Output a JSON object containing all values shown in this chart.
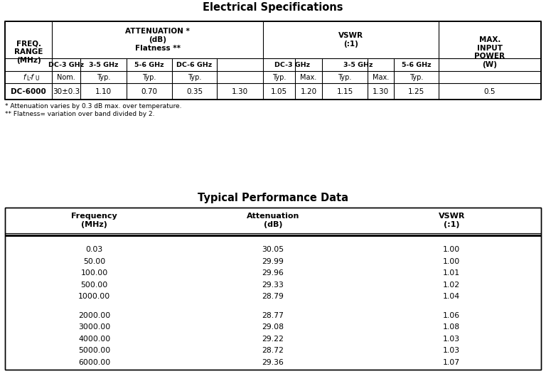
{
  "title1": "Electrical Specifications",
  "title2": "Typical Performance Data",
  "footnote1": "* Attenuation varies by 0.3 dB max. over temperature.",
  "footnote2": "** Flatness= variation over band divided by 2.",
  "elec_data_row": [
    "DC-6000",
    "30±0.3",
    "1.10",
    "0.70",
    "0.35",
    "1.30",
    "1.05",
    "1.20",
    "1.15",
    "1.30",
    "1.25",
    "0.5"
  ],
  "perf_headers": [
    "Frequency\n(MHz)",
    "Attenuation\n(dB)",
    "VSWR\n(:1)"
  ],
  "perf_data": [
    [
      "0.03",
      "30.05",
      "1.00"
    ],
    [
      "50.00",
      "29.99",
      "1.00"
    ],
    [
      "100.00",
      "29.96",
      "1.01"
    ],
    [
      "500.00",
      "29.33",
      "1.02"
    ],
    [
      "1000.00",
      "28.79",
      "1.04"
    ],
    [
      "2000.00",
      "28.77",
      "1.06"
    ],
    [
      "3000.00",
      "29.08",
      "1.08"
    ],
    [
      "4000.00",
      "29.22",
      "1.03"
    ],
    [
      "5000.00",
      "28.72",
      "1.03"
    ],
    [
      "6000.00",
      "29.36",
      "1.07"
    ]
  ],
  "perf_group_break": 5,
  "bg_color": "#ffffff"
}
